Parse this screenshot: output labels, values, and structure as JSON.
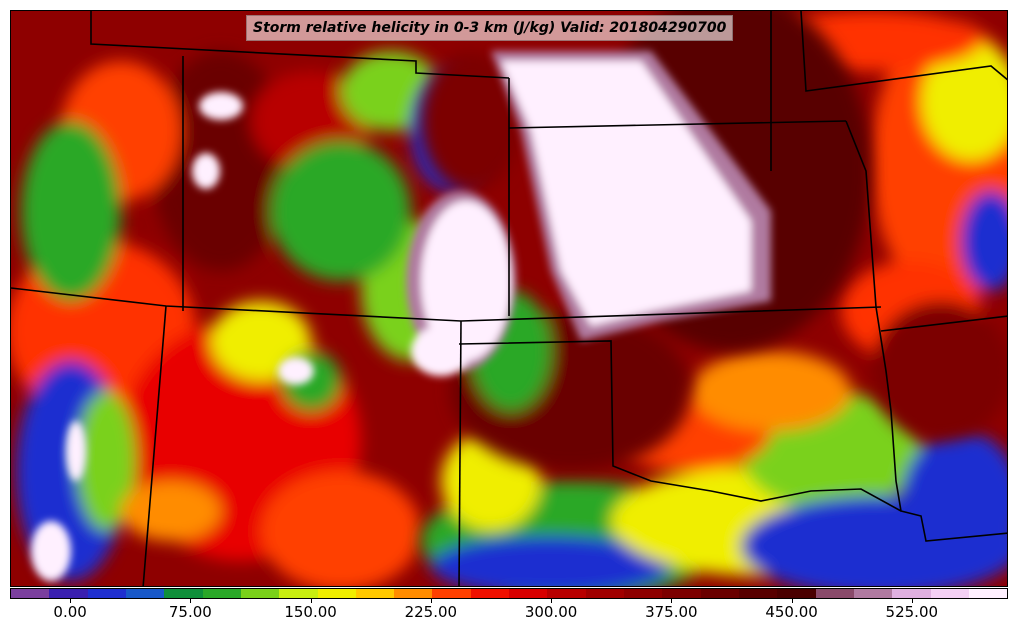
{
  "title": "Storm relative helicity in 0-3 km (J/kg) Valid: 201804290700",
  "colorbar": {
    "colors": [
      "#7b3f9e",
      "#3a1fb0",
      "#1f2fd0",
      "#1858c8",
      "#0e8f3a",
      "#2aa828",
      "#7ad11a",
      "#c8ee10",
      "#f0ee00",
      "#ffc800",
      "#ff8c00",
      "#ff4000",
      "#f01000",
      "#d80000",
      "#b80000",
      "#a00000",
      "#8e0000",
      "#7c0000",
      "#6a0000",
      "#580000",
      "#4a0000",
      "#8a4a6a",
      "#b07aa0",
      "#e0b0e0",
      "#f4d0f4",
      "#fff0ff"
    ],
    "tick_labels": [
      "0.00",
      "75.00",
      "150.00",
      "225.00",
      "300.00",
      "375.00",
      "450.00",
      "525.00"
    ],
    "tick_values": [
      0,
      75,
      150,
      225,
      300,
      375,
      450,
      525
    ],
    "range": [
      -37.5,
      585
    ]
  }
}
